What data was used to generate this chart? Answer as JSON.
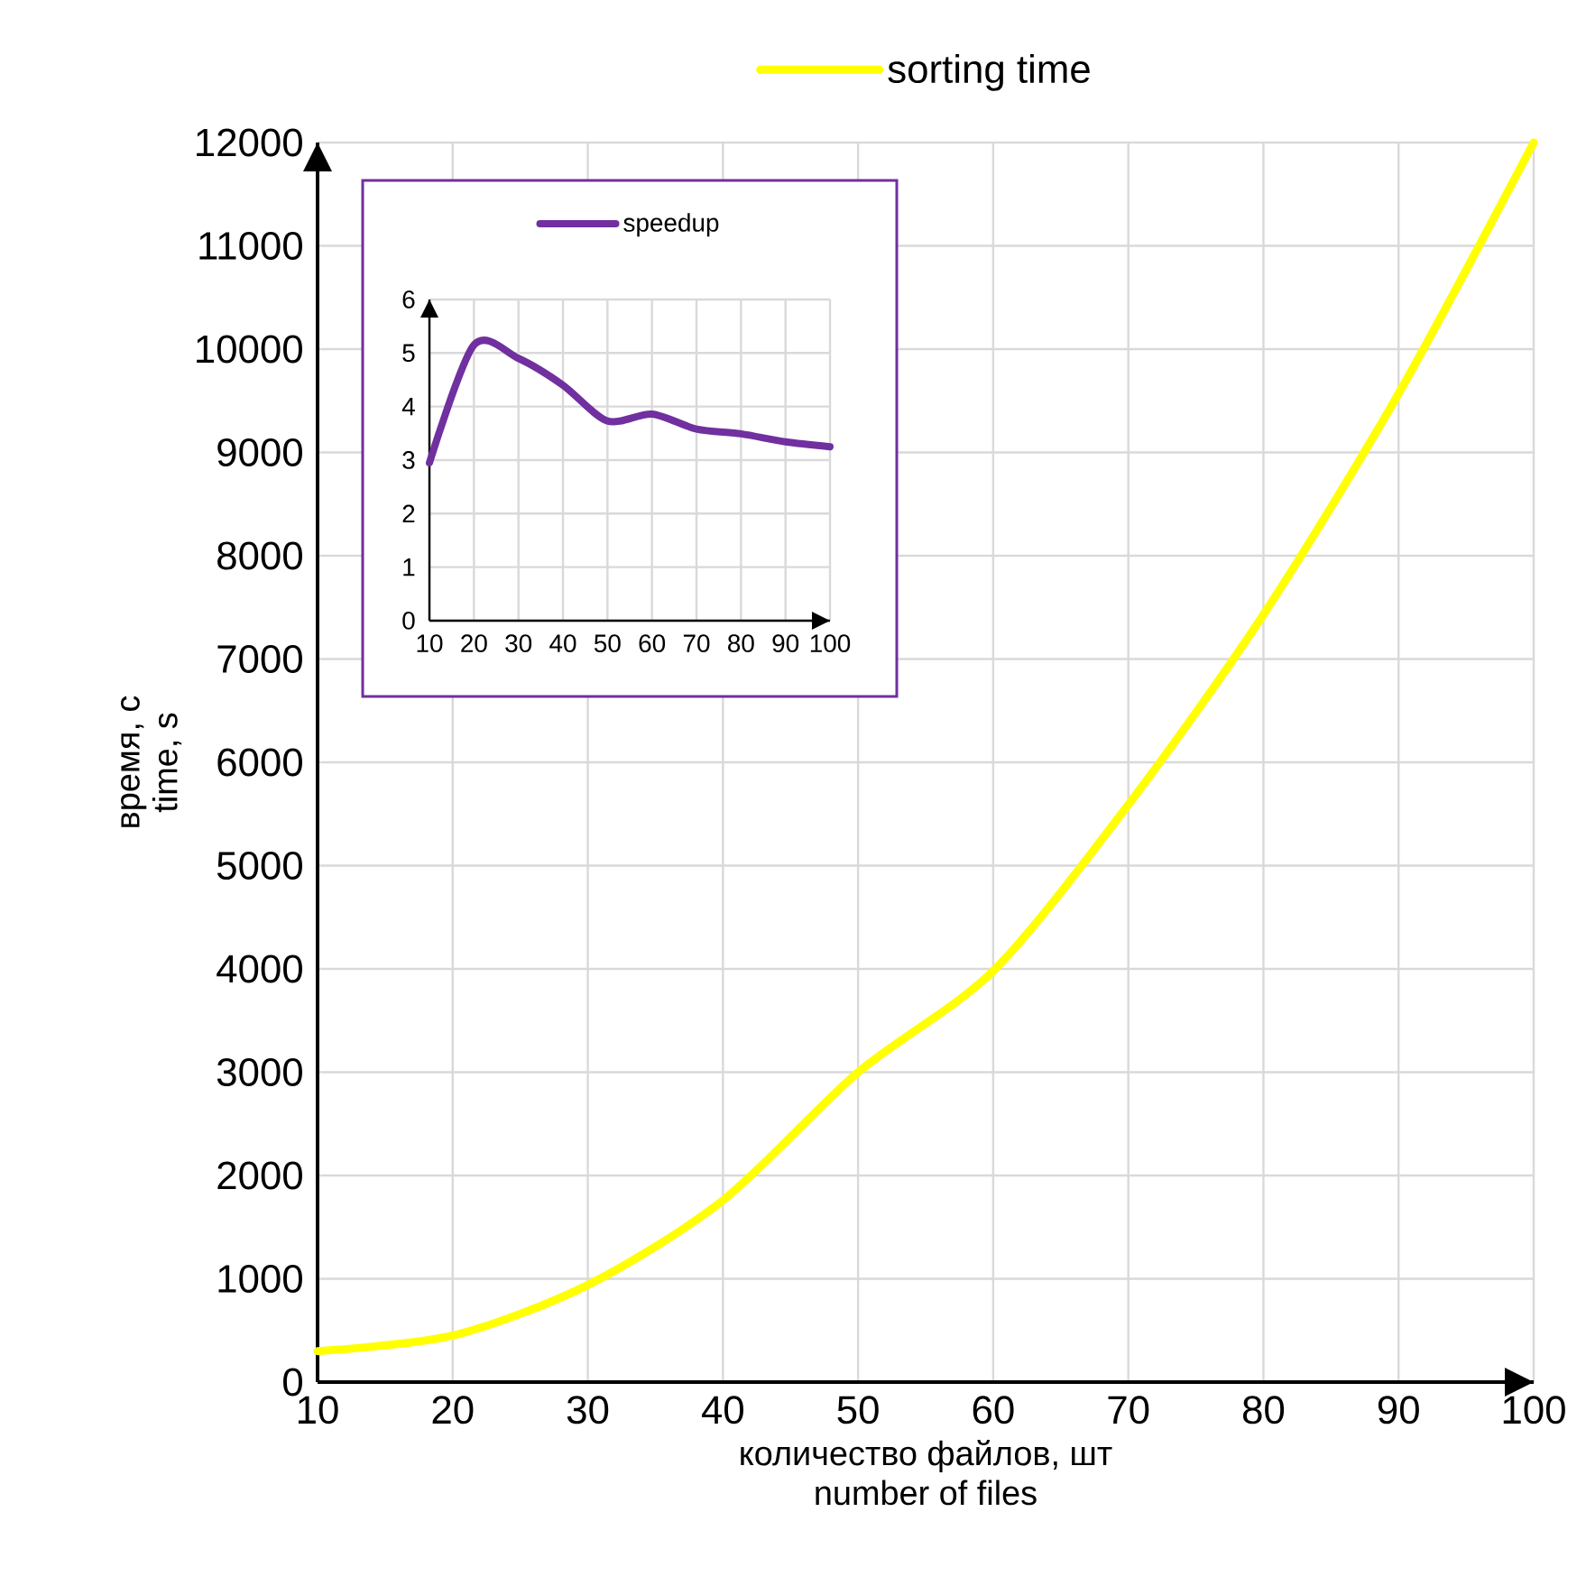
{
  "chart_data": [
    {
      "type": "line",
      "xlabel": "количество файлов, шт number of files",
      "ylabel": "время, с time, s",
      "x": [
        10,
        20,
        30,
        40,
        50,
        60,
        70,
        80,
        90,
        100
      ],
      "series": [
        {
          "name": "sorting time",
          "color": "#ffff00",
          "values": [
            300,
            450,
            940,
            1760,
            3000,
            3980,
            5590,
            7430,
            9570,
            12000
          ]
        }
      ],
      "xlim": [
        10,
        100
      ],
      "xticks": [
        10,
        20,
        30,
        40,
        50,
        60,
        70,
        80,
        90,
        100
      ],
      "ylim": [
        0,
        12000
      ],
      "yticks": [
        0,
        1000,
        2000,
        3000,
        4000,
        5000,
        6000,
        7000,
        8000,
        9000,
        10000,
        11000,
        12000
      ],
      "grid": true,
      "legend": "top",
      "marker": "none",
      "line_style": "solid"
    },
    {
      "type": "line",
      "x": [
        10,
        20,
        30,
        40,
        50,
        60,
        70,
        80,
        90,
        100
      ],
      "series": [
        {
          "name": "speedup",
          "color": "#7030a0",
          "values": [
            2.95,
            5.15,
            4.9,
            4.4,
            3.73,
            3.86,
            3.58,
            3.49,
            3.34,
            3.25
          ]
        }
      ],
      "xlim": [
        10,
        100
      ],
      "xticks": [
        10,
        20,
        30,
        40,
        50,
        60,
        70,
        80,
        90,
        100
      ],
      "ylim": [
        0,
        6
      ],
      "yticks": [
        0,
        1,
        2,
        3,
        4,
        5,
        6
      ],
      "grid": true,
      "legend": "top",
      "marker": "none",
      "line_style": "solid"
    }
  ]
}
